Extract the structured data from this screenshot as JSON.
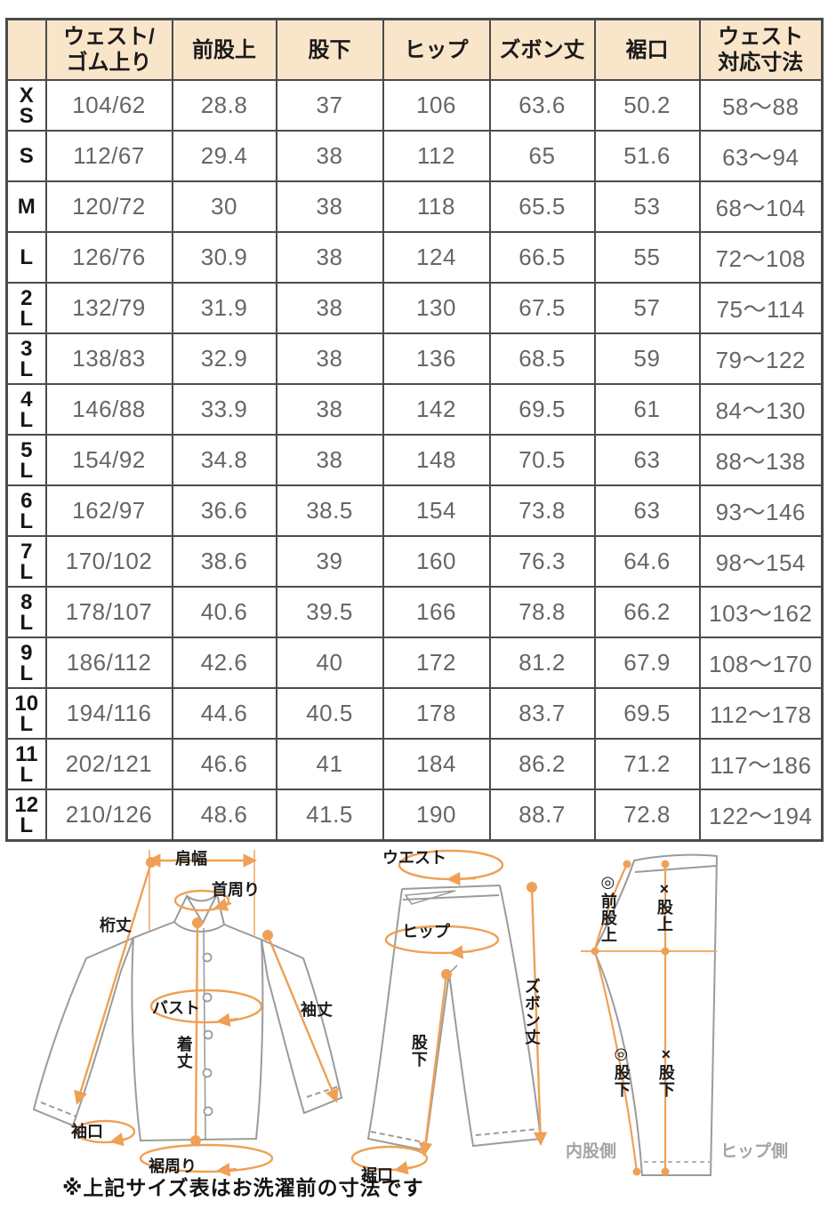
{
  "table": {
    "columns": [
      "",
      "ウェスト/\nゴム上り",
      "前股上",
      "股下",
      "ヒップ",
      "ズボン丈",
      "裾口",
      "ウェスト\n対応寸法"
    ],
    "rows": [
      {
        "size": "X\nS",
        "values": [
          "104/62",
          "28.8",
          "37",
          "106",
          "63.6",
          "50.2",
          "58〜88"
        ]
      },
      {
        "size": "S",
        "values": [
          "112/67",
          "29.4",
          "38",
          "112",
          "65",
          "51.6",
          "63〜94"
        ]
      },
      {
        "size": "M",
        "values": [
          "120/72",
          "30",
          "38",
          "118",
          "65.5",
          "53",
          "68〜104"
        ]
      },
      {
        "size": "L",
        "values": [
          "126/76",
          "30.9",
          "38",
          "124",
          "66.5",
          "55",
          "72〜108"
        ]
      },
      {
        "size": "2\nL",
        "values": [
          "132/79",
          "31.9",
          "38",
          "130",
          "67.5",
          "57",
          "75〜114"
        ]
      },
      {
        "size": "3\nL",
        "values": [
          "138/83",
          "32.9",
          "38",
          "136",
          "68.5",
          "59",
          "79〜122"
        ]
      },
      {
        "size": "4\nL",
        "values": [
          "146/88",
          "33.9",
          "38",
          "142",
          "69.5",
          "61",
          "84〜130"
        ]
      },
      {
        "size": "5\nL",
        "values": [
          "154/92",
          "34.8",
          "38",
          "148",
          "70.5",
          "63",
          "88〜138"
        ]
      },
      {
        "size": "6\nL",
        "values": [
          "162/97",
          "36.6",
          "38.5",
          "154",
          "73.8",
          "63",
          "93〜146"
        ]
      },
      {
        "size": "7\nL",
        "values": [
          "170/102",
          "38.6",
          "39",
          "160",
          "76.3",
          "64.6",
          "98〜154"
        ]
      },
      {
        "size": "8\nL",
        "values": [
          "178/107",
          "40.6",
          "39.5",
          "166",
          "78.8",
          "66.2",
          "103〜162"
        ]
      },
      {
        "size": "9\nL",
        "values": [
          "186/112",
          "42.6",
          "40",
          "172",
          "81.2",
          "67.9",
          "108〜170"
        ]
      },
      {
        "size": "10\nL",
        "values": [
          "194/116",
          "44.6",
          "40.5",
          "178",
          "83.7",
          "69.5",
          "112〜178"
        ]
      },
      {
        "size": "11\nL",
        "values": [
          "202/121",
          "46.6",
          "41",
          "184",
          "86.2",
          "71.2",
          "117〜186"
        ]
      },
      {
        "size": "12\nL",
        "values": [
          "210/126",
          "48.6",
          "41.5",
          "190",
          "88.7",
          "72.8",
          "122〜194"
        ]
      }
    ]
  },
  "diagrams": {
    "shirt": {
      "labels": {
        "shoulder_width": "肩幅",
        "neck_girth": "首周り",
        "sleeve_from_center": "桁丈",
        "bust": "バスト",
        "body_length": "着丈",
        "sleeve_length": "袖丈",
        "cuff_opening": "袖口",
        "hem_girth": "裾周り"
      }
    },
    "pants_front": {
      "labels": {
        "waist": "ウエスト",
        "hip": "ヒップ",
        "pants_length": "ズボン丈",
        "inseam": "股下",
        "hem_opening": "裾口"
      }
    },
    "pants_side": {
      "labels": {
        "front_rise": "◎前股上",
        "rise": "×股上",
        "inseam_marked": "◎股下",
        "inseam_x": "×股下",
        "inner_leg_side": "内股側",
        "hip_side": "ヒップ側"
      }
    }
  },
  "note": "※上記サイズ表はお洗濯前の寸法です",
  "colors": {
    "header_bg": "#f9e5ca",
    "table_border": "#4b4b4b",
    "value_text": "#666666",
    "accent_arrow": "#efa055",
    "garment_line": "#9b9b9b",
    "side_caption": "#a3a3a3"
  }
}
